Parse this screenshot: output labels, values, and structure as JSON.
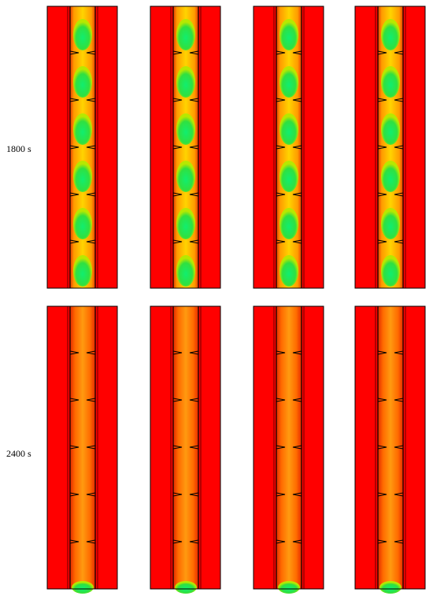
{
  "rows": [
    {
      "label": "1800 s"
    },
    {
      "label": "2400 s"
    }
  ]
}
